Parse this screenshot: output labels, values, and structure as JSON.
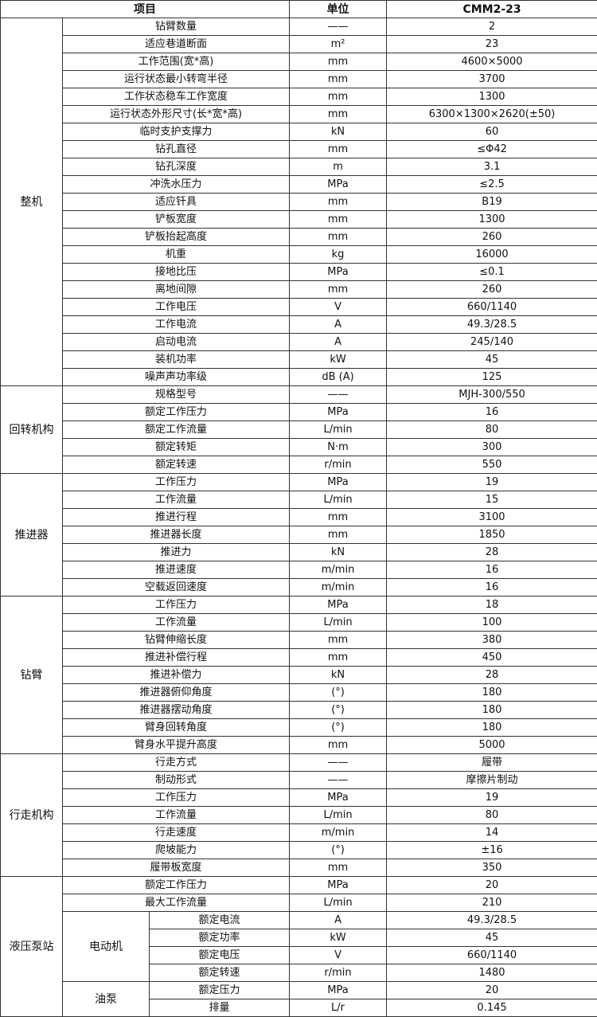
{
  "header": {
    "item": "项目",
    "unit": "单位",
    "value": "CMM2-23"
  },
  "groups": [
    {
      "name": "整机",
      "rows": [
        {
          "item": "钻臂数量",
          "unit": "——",
          "value": "2"
        },
        {
          "item": "适应巷道断面",
          "unit": "m²",
          "value": "23"
        },
        {
          "item": "工作范围(宽*高)",
          "unit": "mm",
          "value": "4600×5000"
        },
        {
          "item": "运行状态最小转弯半径",
          "unit": "mm",
          "value": "3700"
        },
        {
          "item": "工作状态稳车工作宽度",
          "unit": "mm",
          "value": "1300"
        },
        {
          "item": "运行状态外形尺寸(长*宽*高)",
          "unit": "mm",
          "value": "6300×1300×2620(±50)"
        },
        {
          "item": "临时支护支撑力",
          "unit": "kN",
          "value": "60"
        },
        {
          "item": "钻孔直径",
          "unit": "mm",
          "value": "≤Φ42"
        },
        {
          "item": "钻孔深度",
          "unit": "m",
          "value": "3.1"
        },
        {
          "item": "冲洗水压力",
          "unit": "MPa",
          "value": "≤2.5"
        },
        {
          "item": "适应钎具",
          "unit": "mm",
          "value": "B19"
        },
        {
          "item": "铲板宽度",
          "unit": "mm",
          "value": "1300"
        },
        {
          "item": "铲板抬起高度",
          "unit": "mm",
          "value": "260"
        },
        {
          "item": "机重",
          "unit": "kg",
          "value": "16000"
        },
        {
          "item": "接地比压",
          "unit": "MPa",
          "value": "≤0.1"
        },
        {
          "item": "离地间隙",
          "unit": "mm",
          "value": "260"
        },
        {
          "item": "工作电压",
          "unit": "V",
          "value": "660/1140"
        },
        {
          "item": "工作电流",
          "unit": "A",
          "value": "49.3/28.5"
        },
        {
          "item": "启动电流",
          "unit": "A",
          "value": "245/140"
        },
        {
          "item": "装机功率",
          "unit": "kW",
          "value": "45"
        },
        {
          "item": "噪声声功率级",
          "unit": "dB (A)",
          "value": "125"
        }
      ]
    },
    {
      "name": "回转机构",
      "rows": [
        {
          "item": "规格型号",
          "unit": "——",
          "value": "MJH-300/550"
        },
        {
          "item": "额定工作压力",
          "unit": "MPa",
          "value": "16"
        },
        {
          "item": "额定工作流量",
          "unit": "L/min",
          "value": "80"
        },
        {
          "item": "额定转矩",
          "unit": "N·m",
          "value": "300"
        },
        {
          "item": "额定转速",
          "unit": "r/min",
          "value": "550"
        }
      ]
    },
    {
      "name": "推进器",
      "rows": [
        {
          "item": "工作压力",
          "unit": "MPa",
          "value": "19"
        },
        {
          "item": "工作流量",
          "unit": "L/min",
          "value": "15"
        },
        {
          "item": "推进行程",
          "unit": "mm",
          "value": "3100"
        },
        {
          "item": "推进器长度",
          "unit": "mm",
          "value": "1850"
        },
        {
          "item": "推进力",
          "unit": "kN",
          "value": "28"
        },
        {
          "item": "推进速度",
          "unit": "m/min",
          "value": "16"
        },
        {
          "item": "空载返回速度",
          "unit": "m/min",
          "value": "16"
        }
      ]
    },
    {
      "name": "钻臂",
      "rows": [
        {
          "item": "工作压力",
          "unit": "MPa",
          "value": "18"
        },
        {
          "item": "工作流量",
          "unit": "L/min",
          "value": "100"
        },
        {
          "item": "钻臂伸缩长度",
          "unit": "mm",
          "value": "380"
        },
        {
          "item": "推进补偿行程",
          "unit": "mm",
          "value": "450"
        },
        {
          "item": "推进补偿力",
          "unit": "kN",
          "value": "28"
        },
        {
          "item": "推进器俯仰角度",
          "unit": "(°)",
          "value": "180"
        },
        {
          "item": "推进器摆动角度",
          "unit": "(°)",
          "value": "180"
        },
        {
          "item": "臂身回转角度",
          "unit": "(°)",
          "value": "180"
        },
        {
          "item": "臂身水平提升高度",
          "unit": "mm",
          "value": "5000"
        }
      ]
    },
    {
      "name": "行走机构",
      "rows": [
        {
          "item": "行走方式",
          "unit": "——",
          "value": "履带"
        },
        {
          "item": "制动形式",
          "unit": "——",
          "value": "摩擦片制动"
        },
        {
          "item": "工作压力",
          "unit": "MPa",
          "value": "19"
        },
        {
          "item": "工作流量",
          "unit": "L/min",
          "value": "80"
        },
        {
          "item": "行走速度",
          "unit": "m/min",
          "value": "14"
        },
        {
          "item": "爬坡能力",
          "unit": "(°)",
          "value": "±16"
        },
        {
          "item": "履带板宽度",
          "unit": "mm",
          "value": "350"
        }
      ]
    },
    {
      "name": "液压泵站",
      "rows": [
        {
          "item": "额定工作压力",
          "unit": "MPa",
          "value": "20"
        },
        {
          "item": "最大工作流量",
          "unit": "L/min",
          "value": "210"
        }
      ],
      "subgroups": [
        {
          "name": "电动机",
          "rows": [
            {
              "item": "额定电流",
              "unit": "A",
              "value": "49.3/28.5"
            },
            {
              "item": "额定功率",
              "unit": "kW",
              "value": "45"
            },
            {
              "item": "额定电压",
              "unit": "V",
              "value": "660/1140"
            },
            {
              "item": "额定转速",
              "unit": "r/min",
              "value": "1480"
            }
          ]
        },
        {
          "name": "油泵",
          "rows": [
            {
              "item": "额定压力",
              "unit": "MPa",
              "value": "20"
            },
            {
              "item": "排量",
              "unit": "L/r",
              "value": "0.145"
            }
          ]
        }
      ]
    }
  ]
}
